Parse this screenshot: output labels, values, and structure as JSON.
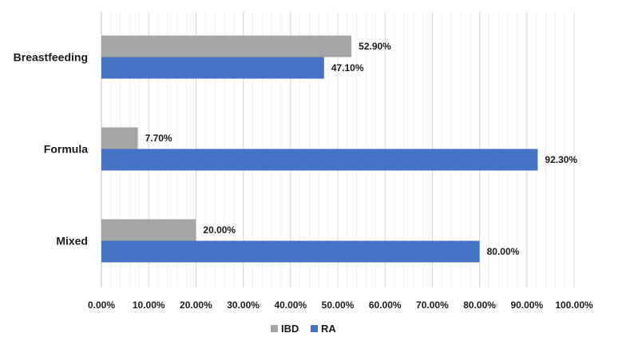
{
  "chart_data": {
    "type": "bar",
    "orientation": "horizontal",
    "title": "",
    "xlabel": "",
    "ylabel": "",
    "categories": [
      "Breastfeeding",
      "Formula",
      "Mixed"
    ],
    "series": [
      {
        "name": "IBD",
        "color": "#a5a5a5",
        "values": [
          52.9,
          7.7,
          20.0
        ],
        "labels": [
          "52.90%",
          "7.70%",
          "20.00%"
        ]
      },
      {
        "name": "RA",
        "color": "#4472c4",
        "values": [
          47.1,
          92.3,
          80.0
        ],
        "labels": [
          "47.10%",
          "92.30%",
          "80.00%"
        ]
      }
    ],
    "xlim": [
      0,
      100
    ],
    "xticks": [
      "0.00%",
      "10.00%",
      "20.00%",
      "30.00%",
      "40.00%",
      "50.00%",
      "60.00%",
      "70.00%",
      "80.00%",
      "90.00%",
      "100.00%"
    ],
    "grid": true,
    "minor_grid_step": 2,
    "legend": "bottom-center"
  }
}
